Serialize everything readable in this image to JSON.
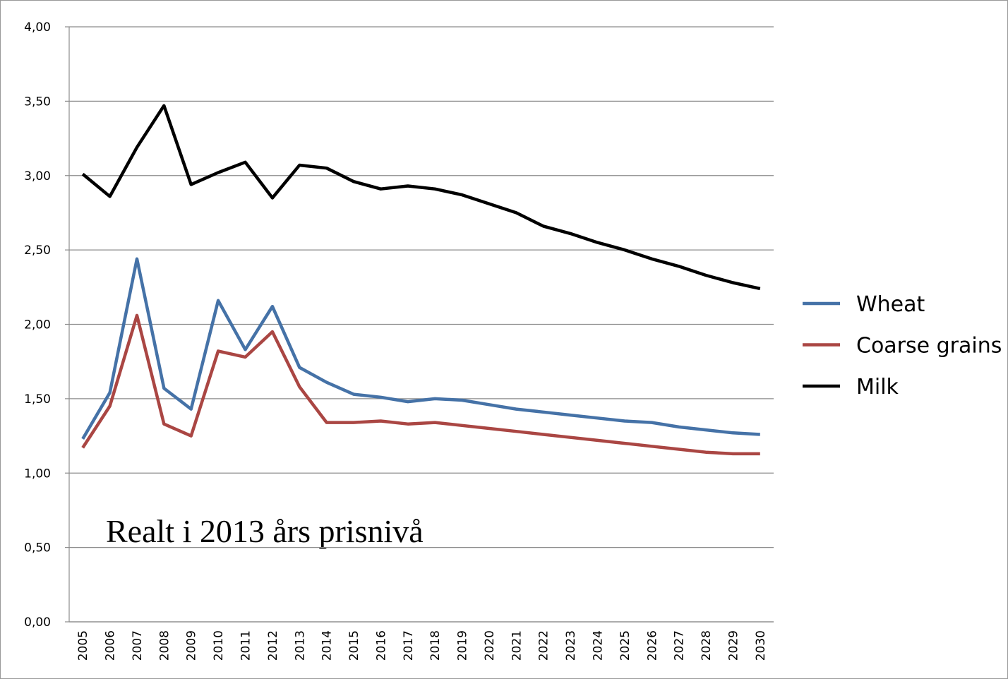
{
  "chart_data": {
    "type": "line",
    "annotation": "Realt i 2013 års prisnivå",
    "categories": [
      "2005",
      "2006",
      "2007",
      "2008",
      "2009",
      "2010",
      "2011",
      "2012",
      "2013",
      "2014",
      "2015",
      "2016",
      "2017",
      "2018",
      "2019",
      "2020",
      "2021",
      "2022",
      "2023",
      "2024",
      "2025",
      "2026",
      "2027",
      "2028",
      "2029",
      "2030"
    ],
    "series": [
      {
        "name": "Wheat",
        "color": "#4572a7",
        "values": [
          1.23,
          1.54,
          2.44,
          1.57,
          1.43,
          2.16,
          1.83,
          2.12,
          1.71,
          1.61,
          1.53,
          1.51,
          1.48,
          1.5,
          1.49,
          1.46,
          1.43,
          1.41,
          1.39,
          1.37,
          1.35,
          1.34,
          1.31,
          1.29,
          1.27,
          1.26
        ]
      },
      {
        "name": "Coarse grains",
        "color": "#aa4643",
        "values": [
          1.17,
          1.45,
          2.06,
          1.33,
          1.25,
          1.82,
          1.78,
          1.95,
          1.58,
          1.34,
          1.34,
          1.35,
          1.33,
          1.34,
          1.32,
          1.3,
          1.28,
          1.26,
          1.24,
          1.22,
          1.2,
          1.18,
          1.16,
          1.14,
          1.13,
          1.13
        ]
      },
      {
        "name": "Milk",
        "color": "#000000",
        "values": [
          3.01,
          2.86,
          3.19,
          3.47,
          2.94,
          3.02,
          3.09,
          2.85,
          3.07,
          3.05,
          2.96,
          2.91,
          2.93,
          2.91,
          2.87,
          2.81,
          2.75,
          2.66,
          2.61,
          2.55,
          2.5,
          2.44,
          2.39,
          2.33,
          2.28,
          2.24
        ]
      }
    ],
    "ylim": [
      0,
      4
    ],
    "yticks": [
      {
        "value": 0,
        "label": "0,00"
      },
      {
        "value": 0.5,
        "label": "0,50"
      },
      {
        "value": 1,
        "label": "1,00"
      },
      {
        "value": 1.5,
        "label": "1,50"
      },
      {
        "value": 2,
        "label": "2,00"
      },
      {
        "value": 2.5,
        "label": "2,50"
      },
      {
        "value": 3,
        "label": "3,00"
      },
      {
        "value": 3.5,
        "label": "3,50"
      },
      {
        "value": 4,
        "label": "4,00"
      }
    ],
    "grid": true,
    "legend": "right"
  }
}
